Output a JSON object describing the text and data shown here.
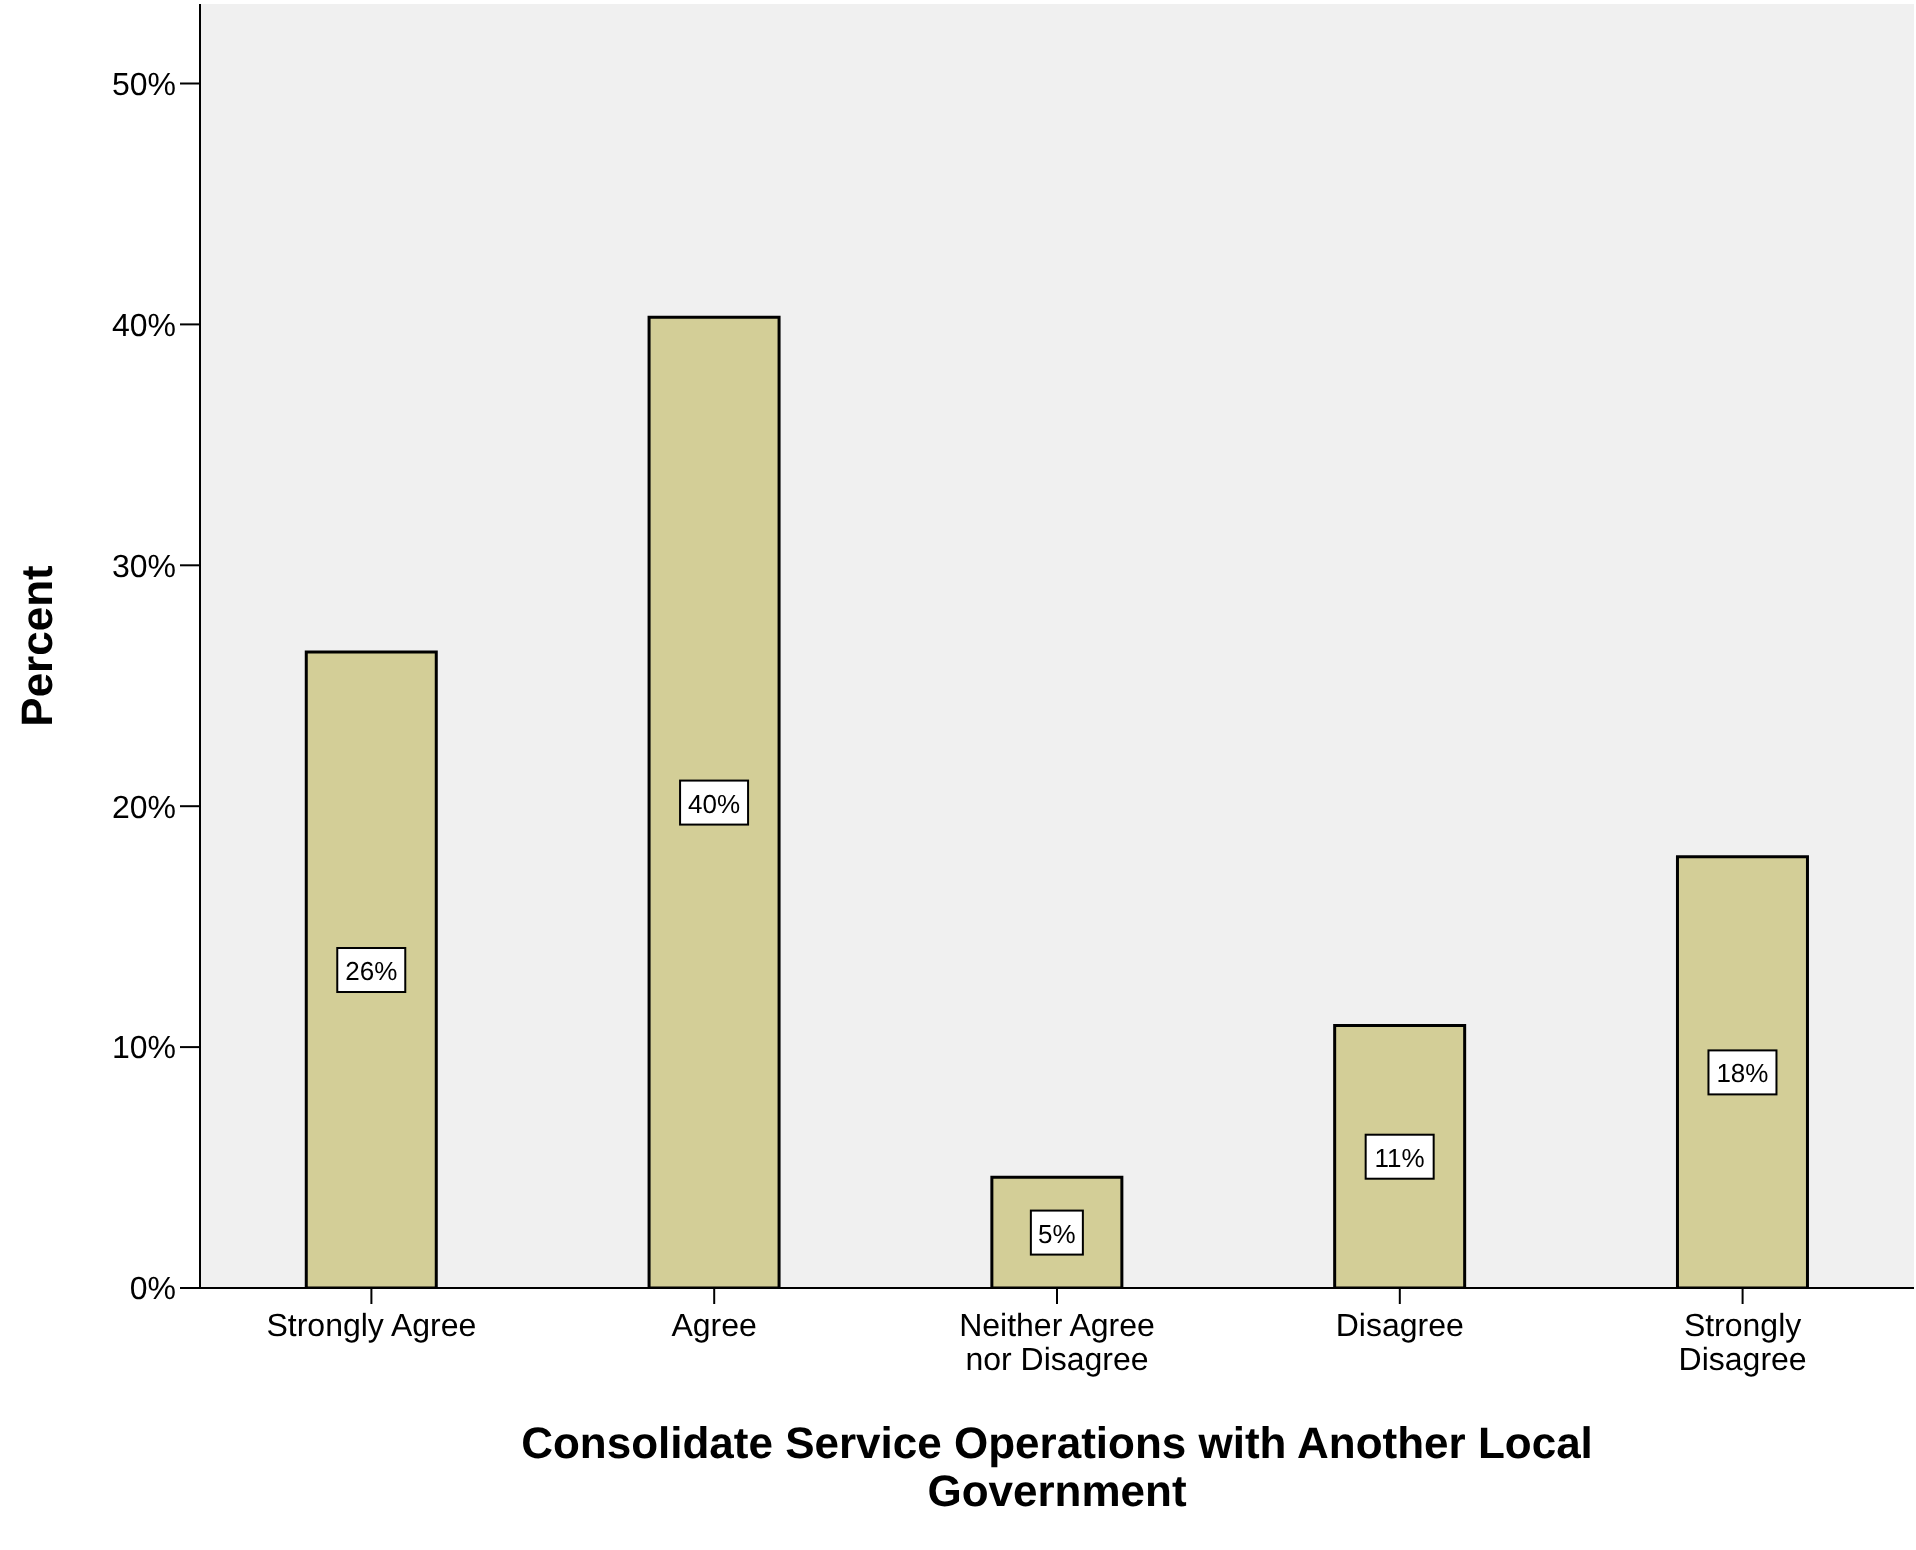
{
  "chart_data": {
    "type": "bar",
    "xlabel": "Consolidate Service Operations with Another Local Government",
    "ylabel": "Percent",
    "categories": [
      "Strongly Agree",
      "Agree",
      "Neither Agree nor Disagree",
      "Disagree",
      "Strongly Disagree"
    ],
    "values": [
      26.4,
      40.3,
      4.6,
      10.9,
      17.9
    ],
    "value_labels": [
      "26%",
      "40%",
      "5%",
      "11%",
      "18%"
    ],
    "color": "#d3ce97",
    "ylim": [
      0,
      53.3
    ],
    "yticks": [
      {
        "value": 0,
        "label": "0%"
      },
      {
        "value": 10,
        "label": "10%"
      },
      {
        "value": 20,
        "label": "20%"
      },
      {
        "value": 30,
        "label": "30%"
      },
      {
        "value": 40,
        "label": "40%"
      },
      {
        "value": 50,
        "label": "50%"
      }
    ],
    "grid": false
  }
}
